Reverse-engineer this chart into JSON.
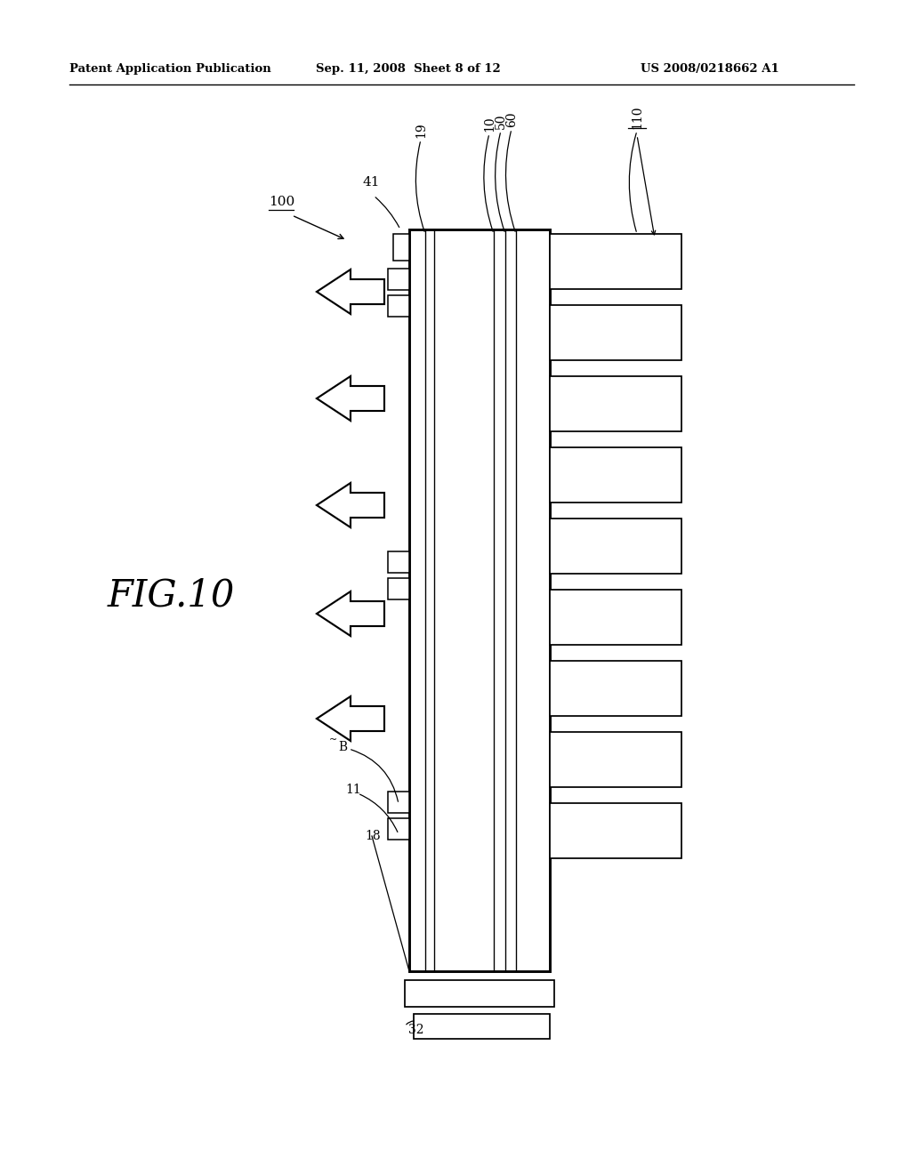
{
  "bg_color": "#ffffff",
  "header_left": "Patent Application Publication",
  "header_center": "Sep. 11, 2008  Sheet 8 of 12",
  "header_right": "US 2008/0218662 A1",
  "fig_label": "FIG.10",
  "lw": 1.4
}
